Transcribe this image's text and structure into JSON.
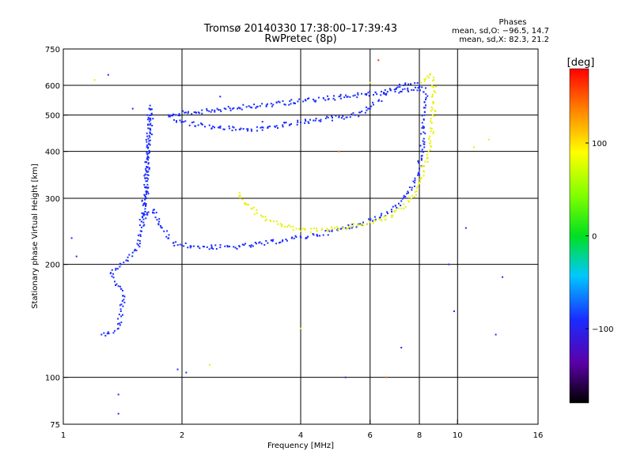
{
  "chart_data": {
    "type": "scatter",
    "title": "Tromsø 20140330 17:38:00–17:39:43",
    "subtitle": "RwPretec (8p)",
    "xlabel": "Frequency [MHz]",
    "ylabel": "Stationary phase Virtual Height [km]",
    "x_scale": "log2",
    "y_scale": "log",
    "xlim": [
      1,
      16
    ],
    "ylim": [
      75,
      750
    ],
    "x_ticks": [
      1,
      2,
      4,
      6,
      8,
      10,
      16
    ],
    "x_tick_labels": [
      "1",
      "2",
      "4",
      "6",
      "8",
      "10",
      "16"
    ],
    "y_ticks": [
      75,
      100,
      200,
      300,
      400,
      500,
      600,
      750
    ],
    "y_tick_labels": [
      "75",
      "100",
      "200",
      "300",
      "400",
      "500",
      "600",
      "750"
    ],
    "grid_x": [
      1,
      2,
      4,
      6,
      8,
      10
    ],
    "grid_y": [
      100,
      200,
      300,
      400,
      500,
      600
    ],
    "stats": {
      "heading": "Phases",
      "line_o": "mean, sd,O: −96.5, 14.7",
      "line_x": "mean, sd,X:  82.3, 21.2"
    },
    "colorbar": {
      "label": "[deg]",
      "range": [
        -180,
        180
      ],
      "ticks": [
        100,
        0,
        -100
      ],
      "tick_labels": [
        "100",
        "0",
        "−100"
      ]
    },
    "series": [
      {
        "mode": "O",
        "phase_deg": -100,
        "color": "#1a2cff",
        "points": [
          [
            1.25,
            130
          ],
          [
            1.3,
            132
          ],
          [
            1.35,
            133
          ],
          [
            1.38,
            135
          ],
          [
            1.4,
            150
          ],
          [
            1.42,
            165
          ],
          [
            1.38,
            175
          ],
          [
            1.35,
            180
          ],
          [
            1.32,
            190
          ],
          [
            1.36,
            195
          ],
          [
            1.4,
            200
          ],
          [
            1.45,
            205
          ],
          [
            1.5,
            215
          ],
          [
            1.55,
            225
          ],
          [
            1.58,
            245
          ],
          [
            1.6,
            270
          ],
          [
            1.62,
            300
          ],
          [
            1.63,
            340
          ],
          [
            1.64,
            380
          ],
          [
            1.65,
            420
          ],
          [
            1.66,
            460
          ],
          [
            1.67,
            500
          ],
          [
            1.66,
            530
          ],
          [
            1.62,
            320
          ],
          [
            1.6,
            290
          ],
          [
            1.58,
            260
          ],
          [
            1.7,
            280
          ],
          [
            1.75,
            260
          ],
          [
            1.8,
            245
          ],
          [
            1.85,
            235
          ],
          [
            1.9,
            228
          ],
          [
            2.0,
            225
          ],
          [
            2.2,
            223
          ],
          [
            2.5,
            222
          ],
          [
            2.8,
            223
          ],
          [
            3.0,
            225
          ],
          [
            3.3,
            228
          ],
          [
            3.6,
            232
          ],
          [
            4.0,
            236
          ],
          [
            4.4,
            240
          ],
          [
            4.8,
            245
          ],
          [
            5.2,
            250
          ],
          [
            5.6,
            256
          ],
          [
            6.0,
            262
          ],
          [
            6.4,
            270
          ],
          [
            6.8,
            280
          ],
          [
            7.2,
            295
          ],
          [
            7.5,
            310
          ],
          [
            7.8,
            335
          ],
          [
            8.0,
            360
          ],
          [
            8.1,
            400
          ],
          [
            8.2,
            450
          ],
          [
            8.25,
            500
          ],
          [
            8.3,
            550
          ],
          [
            8.3,
            590
          ],
          [
            1.85,
            500
          ],
          [
            2.0,
            480
          ],
          [
            2.2,
            470
          ],
          [
            2.5,
            462
          ],
          [
            2.8,
            458
          ],
          [
            3.0,
            458
          ],
          [
            3.3,
            462
          ],
          [
            3.6,
            470
          ],
          [
            4.0,
            478
          ],
          [
            4.5,
            486
          ],
          [
            5.0,
            493
          ],
          [
            5.5,
            500
          ],
          [
            6.0,
            520
          ],
          [
            6.3,
            545
          ],
          [
            6.6,
            570
          ],
          [
            7.0,
            590
          ],
          [
            7.3,
            600
          ],
          [
            7.6,
            605
          ],
          [
            8.0,
            598
          ]
        ]
      },
      {
        "mode": "X",
        "phase_deg": 82,
        "color": "#e8f000",
        "points": [
          [
            2.8,
            310
          ],
          [
            2.85,
            298
          ],
          [
            2.9,
            290
          ],
          [
            3.0,
            282
          ],
          [
            3.1,
            274
          ],
          [
            3.2,
            268
          ],
          [
            3.35,
            262
          ],
          [
            3.5,
            256
          ],
          [
            3.7,
            252
          ],
          [
            3.9,
            249
          ],
          [
            4.1,
            247
          ],
          [
            4.4,
            246
          ],
          [
            4.7,
            247
          ],
          [
            5.0,
            249
          ],
          [
            5.3,
            252
          ],
          [
            5.6,
            255
          ],
          [
            6.0,
            259
          ],
          [
            6.4,
            263
          ],
          [
            6.8,
            270
          ],
          [
            7.2,
            282
          ],
          [
            7.5,
            295
          ],
          [
            7.8,
            312
          ],
          [
            8.0,
            330
          ],
          [
            8.2,
            355
          ],
          [
            8.4,
            385
          ],
          [
            8.5,
            420
          ],
          [
            8.6,
            460
          ],
          [
            8.65,
            500
          ],
          [
            8.7,
            540
          ],
          [
            8.72,
            580
          ],
          [
            8.7,
            620
          ],
          [
            8.5,
            640
          ],
          [
            8.3,
            625
          ],
          [
            8.1,
            610
          ]
        ]
      }
    ],
    "scattered_points": [
      {
        "x": 1.05,
        "y": 235,
        "color": "#1a2cff"
      },
      {
        "x": 1.08,
        "y": 210,
        "color": "#1a2cff"
      },
      {
        "x": 1.2,
        "y": 620,
        "color": "#e8f000"
      },
      {
        "x": 1.3,
        "y": 640,
        "color": "#1a2cff"
      },
      {
        "x": 1.5,
        "y": 520,
        "color": "#1a2cff"
      },
      {
        "x": 1.95,
        "y": 105,
        "color": "#1a2cff"
      },
      {
        "x": 2.05,
        "y": 103,
        "color": "#1a2cff"
      },
      {
        "x": 2.35,
        "y": 108,
        "color": "#e8f000"
      },
      {
        "x": 1.38,
        "y": 80,
        "color": "#1a2cff"
      },
      {
        "x": 1.38,
        "y": 90,
        "color": "#1a2cff"
      },
      {
        "x": 5.2,
        "y": 100,
        "color": "#1a2cff"
      },
      {
        "x": 6.6,
        "y": 100,
        "color": "#ff6600"
      },
      {
        "x": 6.3,
        "y": 700,
        "color": "#ff3300"
      },
      {
        "x": 6.0,
        "y": 610,
        "color": "#e8f000"
      },
      {
        "x": 10.5,
        "y": 250,
        "color": "#1a2cff"
      },
      {
        "x": 11.0,
        "y": 410,
        "color": "#e8f000"
      },
      {
        "x": 12.0,
        "y": 430,
        "color": "#e8f000"
      },
      {
        "x": 13.0,
        "y": 185,
        "color": "#1a2cff"
      },
      {
        "x": 12.5,
        "y": 130,
        "color": "#1a2cff"
      },
      {
        "x": 9.5,
        "y": 200,
        "color": "#1a2cff"
      },
      {
        "x": 7.2,
        "y": 120,
        "color": "#1a2cff"
      },
      {
        "x": 4.0,
        "y": 135,
        "color": "#e8f000"
      },
      {
        "x": 3.2,
        "y": 480,
        "color": "#1a2cff"
      },
      {
        "x": 2.5,
        "y": 560,
        "color": "#1a2cff"
      },
      {
        "x": 5.0,
        "y": 400,
        "color": "#ff6600"
      },
      {
        "x": 9.8,
        "y": 150,
        "color": "#1a2cff"
      }
    ]
  }
}
